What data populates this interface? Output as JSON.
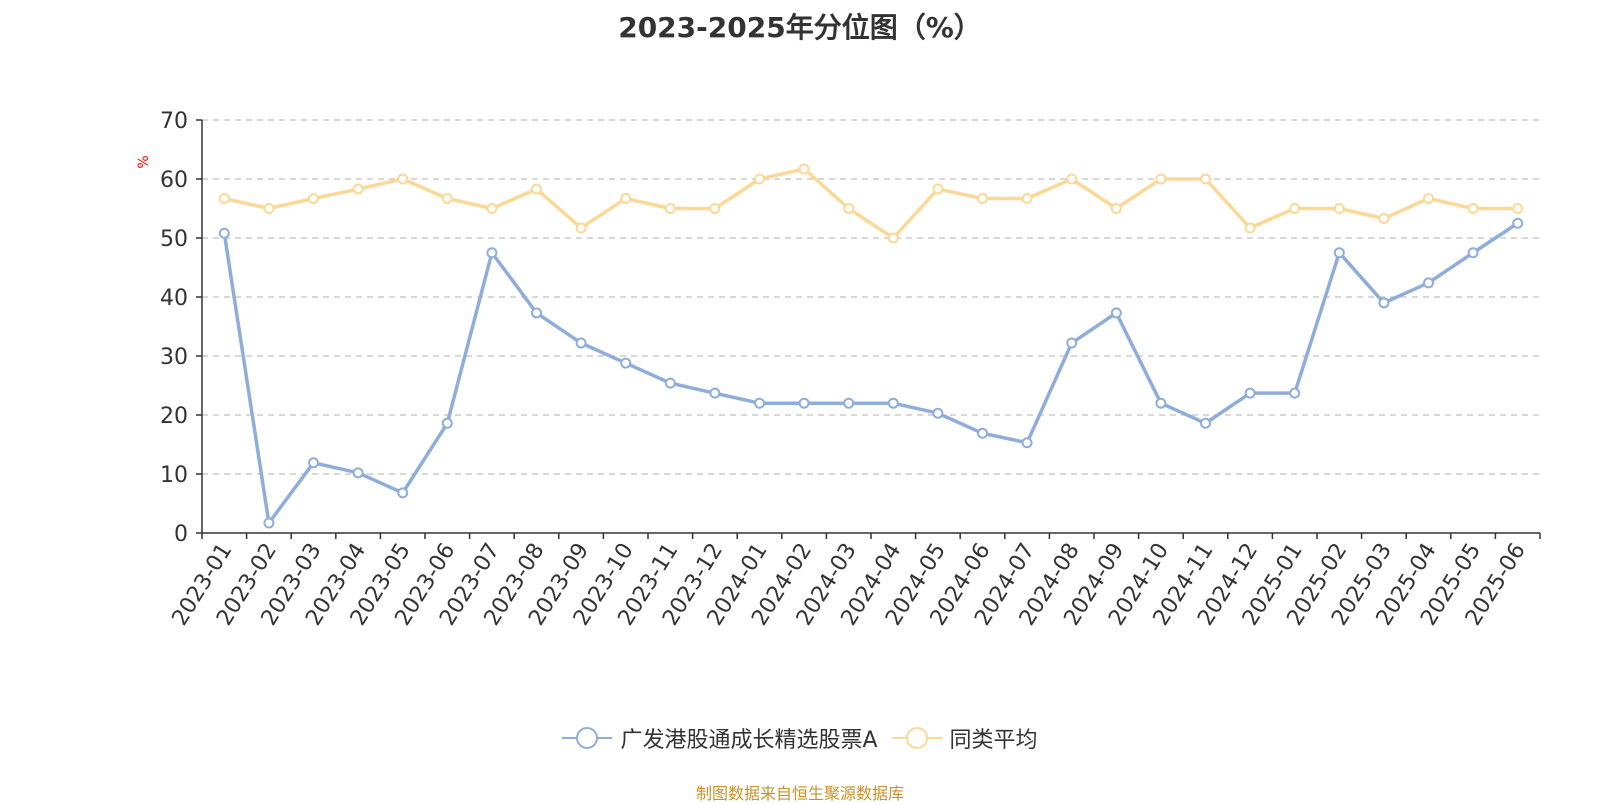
{
  "title": "2023-2025年分位图（%）",
  "footer": "制图数据来自恒生聚源数据库",
  "colors": {
    "series1": "#8eaddb",
    "series2": "#fbd896",
    "footer": "#c8922a",
    "ylabel": "#ff0000",
    "grid": "#cccccc",
    "axis": "#333333"
  },
  "chart_data": {
    "type": "line",
    "title": "2023-2025年分位图（%）",
    "ylabel": "%",
    "xlabel": "",
    "ylim": [
      0,
      70
    ],
    "yticks": [
      0,
      10,
      20,
      30,
      40,
      50,
      60,
      70
    ],
    "grid": true,
    "legend_position": "bottom-center",
    "categories": [
      "2023-01",
      "2023-02",
      "2023-03",
      "2023-04",
      "2023-05",
      "2023-06",
      "2023-07",
      "2023-08",
      "2023-09",
      "2023-10",
      "2023-11",
      "2023-12",
      "2024-01",
      "2024-02",
      "2024-03",
      "2024-04",
      "2024-05",
      "2024-06",
      "2024-07",
      "2024-08",
      "2024-09",
      "2024-10",
      "2024-11",
      "2024-12",
      "2025-01",
      "2025-02",
      "2025-03",
      "2025-04",
      "2025-05",
      "2025-06"
    ],
    "series": [
      {
        "name": "广发港股通成长精选股票A",
        "values": [
          50.8,
          1.7,
          11.9,
          10.2,
          6.8,
          18.6,
          47.5,
          37.3,
          32.2,
          28.8,
          25.4,
          23.7,
          22.0,
          22.0,
          22.0,
          22.0,
          20.3,
          16.9,
          15.3,
          32.2,
          37.3,
          22.0,
          18.6,
          23.7,
          23.7,
          47.5,
          39.0,
          42.4,
          47.5,
          52.5
        ]
      },
      {
        "name": "同类平均",
        "values": [
          56.7,
          55.0,
          56.7,
          58.3,
          60.0,
          56.7,
          55.0,
          58.3,
          51.7,
          56.7,
          55.0,
          55.0,
          60.0,
          61.7,
          55.0,
          50.0,
          58.3,
          56.7,
          56.7,
          60.0,
          55.0,
          60.0,
          60.0,
          51.7,
          55.0,
          55.0,
          53.3,
          56.7,
          55.0,
          55.0
        ]
      }
    ]
  }
}
